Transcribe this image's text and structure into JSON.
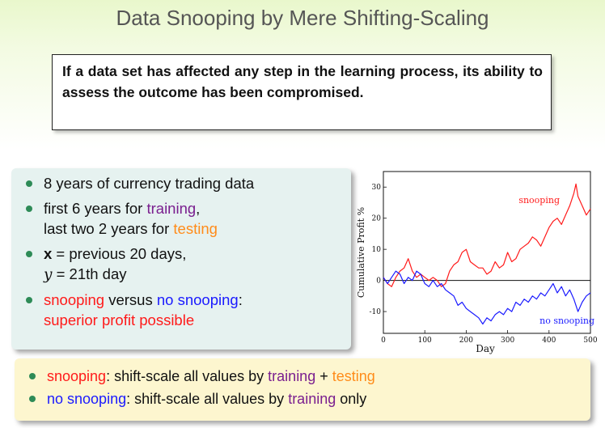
{
  "slide": {
    "title": "Data Snooping by Mere Shifting-Scaling",
    "quote": "If a data set has affected any step in the learning process, its ability to assess the outcome has been compromised."
  },
  "left_bullets": {
    "b1": "8 years of currency trading data",
    "b2_pre": "first 6 years for ",
    "b2_training": "training",
    "b2_post": ",",
    "b2_line2_pre": "last two 2 years for ",
    "b2_testing": "testing",
    "b3_x": "x",
    "b3_post": " = previous 20 days,",
    "b3_y": "y",
    "b3_line2": " = 21th day",
    "b4_snooping": "snooping",
    "b4_versus": " versus ",
    "b4_nosnooping": "no snooping",
    "b4_colon": ":",
    "b4_line2": "superior profit possible"
  },
  "bottom_bullets": {
    "b1_snooping": "snooping",
    "b1_mid": ": shift-scale all values by ",
    "b1_training": "training",
    "b1_plus": " + ",
    "b1_testing": "testing",
    "b2_nosnooping": "no snooping",
    "b2_mid": ": shift-scale all values by ",
    "b2_training": "training",
    "b2_end": " only"
  },
  "colors": {
    "snooping": "#ff1a1a",
    "no_snooping": "#1a1aff",
    "training": "#7a1f8f",
    "testing": "#ff8c1a",
    "bullet": "#2e8b57"
  },
  "chart_data": {
    "type": "line",
    "title": "",
    "xlabel": "Day",
    "ylabel": "Cumulative Profit %",
    "xlim": [
      0,
      500
    ],
    "ylim": [
      -17,
      35
    ],
    "xticks": [
      0,
      100,
      200,
      300,
      400,
      500
    ],
    "yticks": [
      -10,
      0,
      10,
      20,
      30
    ],
    "zero_line": true,
    "grid": false,
    "series": [
      {
        "name": "snooping",
        "color": "#ff1a1a",
        "label_position": "upper-right",
        "points": [
          [
            0,
            1
          ],
          [
            10,
            -1
          ],
          [
            20,
            -2
          ],
          [
            30,
            1
          ],
          [
            40,
            3
          ],
          [
            50,
            4
          ],
          [
            60,
            7
          ],
          [
            70,
            3
          ],
          [
            80,
            1
          ],
          [
            90,
            2
          ],
          [
            100,
            1
          ],
          [
            110,
            0
          ],
          [
            120,
            1
          ],
          [
            130,
            0
          ],
          [
            140,
            -2
          ],
          [
            150,
            -1
          ],
          [
            160,
            3
          ],
          [
            170,
            5
          ],
          [
            180,
            6
          ],
          [
            190,
            9
          ],
          [
            200,
            10
          ],
          [
            210,
            6
          ],
          [
            220,
            5
          ],
          [
            230,
            4
          ],
          [
            240,
            4
          ],
          [
            250,
            2
          ],
          [
            260,
            3
          ],
          [
            270,
            6
          ],
          [
            280,
            4
          ],
          [
            290,
            5
          ],
          [
            300,
            9
          ],
          [
            310,
            6
          ],
          [
            320,
            7
          ],
          [
            330,
            10
          ],
          [
            340,
            11
          ],
          [
            350,
            12
          ],
          [
            360,
            14
          ],
          [
            370,
            13
          ],
          [
            380,
            11
          ],
          [
            390,
            14
          ],
          [
            400,
            17
          ],
          [
            410,
            19
          ],
          [
            420,
            20
          ],
          [
            430,
            18
          ],
          [
            440,
            21
          ],
          [
            450,
            24
          ],
          [
            460,
            28
          ],
          [
            465,
            31
          ],
          [
            470,
            27
          ],
          [
            480,
            24
          ],
          [
            490,
            21
          ],
          [
            500,
            23
          ]
        ]
      },
      {
        "name": "no snooping",
        "color": "#1a1aff",
        "label_position": "lower-right",
        "points": [
          [
            0,
            1
          ],
          [
            10,
            -1
          ],
          [
            20,
            1
          ],
          [
            30,
            3
          ],
          [
            40,
            2
          ],
          [
            50,
            -1
          ],
          [
            60,
            1
          ],
          [
            70,
            0
          ],
          [
            80,
            3
          ],
          [
            90,
            2
          ],
          [
            100,
            -1
          ],
          [
            110,
            -2
          ],
          [
            120,
            0
          ],
          [
            130,
            -2
          ],
          [
            140,
            -1
          ],
          [
            150,
            -3
          ],
          [
            160,
            -4
          ],
          [
            170,
            -5
          ],
          [
            180,
            -8
          ],
          [
            190,
            -7
          ],
          [
            200,
            -9
          ],
          [
            210,
            -10
          ],
          [
            220,
            -11
          ],
          [
            230,
            -12
          ],
          [
            240,
            -14
          ],
          [
            250,
            -12
          ],
          [
            260,
            -13
          ],
          [
            270,
            -11
          ],
          [
            280,
            -10
          ],
          [
            290,
            -11
          ],
          [
            300,
            -9
          ],
          [
            310,
            -10
          ],
          [
            320,
            -7
          ],
          [
            330,
            -8
          ],
          [
            340,
            -6
          ],
          [
            350,
            -7
          ],
          [
            360,
            -5
          ],
          [
            370,
            -6
          ],
          [
            380,
            -4
          ],
          [
            390,
            -5
          ],
          [
            400,
            -3
          ],
          [
            410,
            -1
          ],
          [
            420,
            -4
          ],
          [
            430,
            -2
          ],
          [
            440,
            -5
          ],
          [
            450,
            -3
          ],
          [
            460,
            -6
          ],
          [
            470,
            -10
          ],
          [
            480,
            -7
          ],
          [
            490,
            -5
          ],
          [
            500,
            -4
          ]
        ]
      }
    ]
  }
}
